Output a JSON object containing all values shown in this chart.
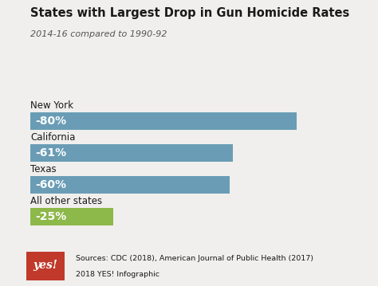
{
  "title": "States with Largest Drop in Gun Homicide Rates",
  "subtitle": "2014-16 compared to 1990-92",
  "categories": [
    "New York",
    "California",
    "Texas",
    "All other states"
  ],
  "values": [
    80,
    61,
    60,
    25
  ],
  "labels": [
    "-80%",
    "-61%",
    "-60%",
    "-25%"
  ],
  "bar_colors": [
    "#6a9db5",
    "#6a9db5",
    "#6a9db5",
    "#8db84a"
  ],
  "text_color": "#ffffff",
  "title_color": "#1a1a1a",
  "subtitle_color": "#555555",
  "background_color": "#f0efed",
  "source_text_line1": "Sources: CDC (2018), American Journal of Public Health (2017)",
  "source_text_line2": "2018 YES! Infographic",
  "logo_color": "#c0392b",
  "logo_text": "yes!",
  "bar_height": 0.55,
  "xlim": [
    0,
    100
  ],
  "max_bar_val": 100
}
